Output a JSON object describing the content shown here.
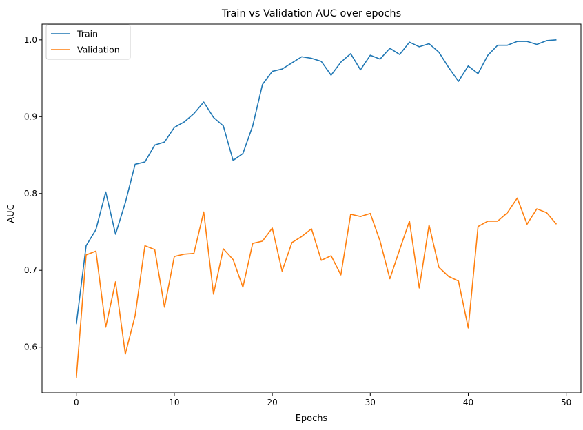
{
  "chart_data": {
    "type": "line",
    "title": "Train vs Validation AUC over epochs",
    "xlabel": "Epochs",
    "ylabel": "AUC",
    "xlim": [
      -3.5,
      51.5
    ],
    "ylim": [
      0.5405,
      1.0205
    ],
    "xticks": [
      0,
      10,
      20,
      30,
      40,
      50
    ],
    "yticks": [
      0.6,
      0.7,
      0.8,
      0.9,
      1.0
    ],
    "xtick_labels": [
      "0",
      "10",
      "20",
      "30",
      "40",
      "50"
    ],
    "ytick_labels": [
      "0.6",
      "0.7",
      "0.8",
      "0.9",
      "1.0"
    ],
    "grid": false,
    "legend_position": "top-left",
    "x": [
      0,
      1,
      2,
      3,
      4,
      5,
      6,
      7,
      8,
      9,
      10,
      11,
      12,
      13,
      14,
      15,
      16,
      17,
      18,
      19,
      20,
      21,
      22,
      23,
      24,
      25,
      26,
      27,
      28,
      29,
      30,
      31,
      32,
      33,
      34,
      35,
      36,
      37,
      38,
      39,
      40,
      41,
      42,
      43,
      44,
      45,
      46,
      47,
      48,
      49
    ],
    "series": [
      {
        "name": "Train",
        "color": "#1f77b4",
        "values": [
          0.63,
          0.732,
          0.753,
          0.802,
          0.747,
          0.788,
          0.838,
          0.841,
          0.863,
          0.867,
          0.886,
          0.893,
          0.904,
          0.919,
          0.899,
          0.888,
          0.843,
          0.852,
          0.888,
          0.942,
          0.959,
          0.962,
          0.97,
          0.978,
          0.976,
          0.972,
          0.954,
          0.971,
          0.982,
          0.961,
          0.98,
          0.975,
          0.989,
          0.981,
          0.997,
          0.991,
          0.995,
          0.984,
          0.964,
          0.946,
          0.966,
          0.956,
          0.98,
          0.993,
          0.993,
          0.998,
          0.998,
          0.994,
          0.999,
          1.0
        ]
      },
      {
        "name": "Validation",
        "color": "#ff7f0e",
        "values": [
          0.56,
          0.72,
          0.725,
          0.626,
          0.685,
          0.591,
          0.641,
          0.732,
          0.727,
          0.652,
          0.718,
          0.721,
          0.722,
          0.776,
          0.669,
          0.728,
          0.714,
          0.678,
          0.735,
          0.738,
          0.755,
          0.699,
          0.736,
          0.744,
          0.754,
          0.713,
          0.719,
          0.694,
          0.773,
          0.77,
          0.774,
          0.738,
          0.689,
          0.727,
          0.764,
          0.677,
          0.759,
          0.704,
          0.692,
          0.686,
          0.625,
          0.757,
          0.764,
          0.764,
          0.775,
          0.794,
          0.76,
          0.78,
          0.775,
          0.76
        ]
      }
    ]
  }
}
